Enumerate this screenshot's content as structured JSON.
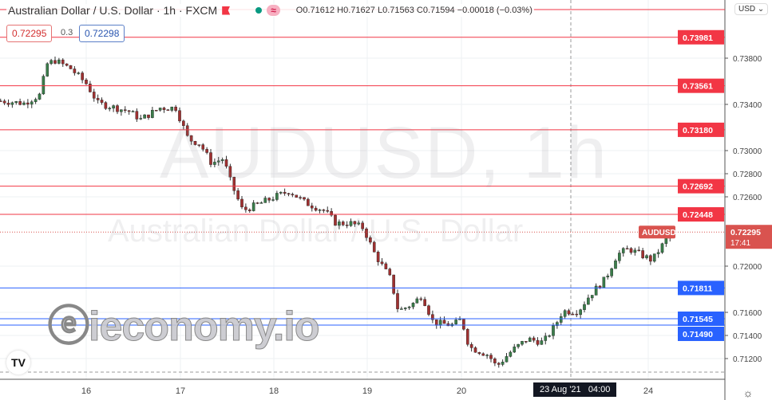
{
  "header": {
    "title": "Australian Dollar / U.S. Dollar · 1h · FXCM",
    "open": "O0.71612",
    "high": "H0.71627",
    "low": "L0.71563",
    "close": "C0.71594",
    "change": "−0.00018 (−0.03%)"
  },
  "trade": {
    "sell": "0.72295",
    "spread": "0.3",
    "buy": "0.72298"
  },
  "currency": "USD ⌄",
  "watermark": {
    "symbol": "AUDUSD, 1h",
    "name": "Australian Dollar / U.S. Dollar",
    "brand": "ieconomy.io",
    "tv_logo": "TV"
  },
  "crosshair_label": "23 Aug '21   04:00",
  "colors": {
    "up": "#26a69a",
    "down": "#ef5350",
    "resistance": "#f23645",
    "support": "#2962ff",
    "candle_body_up": "#3a7d4a",
    "candle_body_down": "#a03030"
  },
  "chart_data": {
    "type": "candlestick",
    "symbol": "AUDUSD",
    "timeframe": "1h",
    "price_ticks": [
      "0.73800",
      "0.73400",
      "0.73000",
      "0.72800",
      "0.72600",
      "0.72000",
      "0.71600",
      "0.71400",
      "0.71200"
    ],
    "time_ticks": [
      {
        "label": "16",
        "day": 16
      },
      {
        "label": "17",
        "day": 17
      },
      {
        "label": "18",
        "day": 18
      },
      {
        "label": "19",
        "day": 19
      },
      {
        "label": "20",
        "day": 20
      },
      {
        "label": "24",
        "day": 24
      }
    ],
    "resistance_levels": [
      "0.73981",
      "0.73561",
      "0.73180",
      "0.72692",
      "0.72448"
    ],
    "support_levels": [
      "0.71811",
      "0.71545",
      "0.71490"
    ],
    "last_price": {
      "label": "AUDUSD",
      "price": "0.72295",
      "countdown": "17:41"
    },
    "closes": [
      [
        "15 02",
        0.7343
      ],
      [
        "15 08",
        0.7341
      ],
      [
        "15 12",
        0.7348
      ],
      [
        "15 14",
        0.7375
      ],
      [
        "15 16",
        0.7378
      ],
      [
        "15 20",
        0.7371
      ],
      [
        "16 00",
        0.7358
      ],
      [
        "16 03",
        0.7341
      ],
      [
        "16 11",
        0.7334
      ],
      [
        "16 14",
        0.7327
      ],
      [
        "16 19",
        0.7337
      ],
      [
        "16 23",
        0.7337
      ],
      [
        "17 02",
        0.731
      ],
      [
        "17 05",
        0.7306
      ],
      [
        "17 08",
        0.7289
      ],
      [
        "17 11",
        0.7293
      ],
      [
        "17 13",
        0.7272
      ],
      [
        "17 16",
        0.7248
      ],
      [
        "17 21",
        0.7255
      ],
      [
        "18 01",
        0.7261
      ],
      [
        "18 04",
        0.7265
      ],
      [
        "18 08",
        0.7255
      ],
      [
        "18 13",
        0.7248
      ],
      [
        "18 16",
        0.7237
      ],
      [
        "18 20",
        0.7237
      ],
      [
        "18 23",
        0.7233
      ],
      [
        "19 02",
        0.721
      ],
      [
        "19 06",
        0.7189
      ],
      [
        "19 08",
        0.7161
      ],
      [
        "19 12",
        0.7168
      ],
      [
        "19 14",
        0.7175
      ],
      [
        "19 17",
        0.7151
      ],
      [
        "19 22",
        0.7149
      ],
      [
        "20 00",
        0.7154
      ],
      [
        "20 02",
        0.713
      ],
      [
        "20 07",
        0.7123
      ],
      [
        "20 09",
        0.7113
      ],
      [
        "20 13",
        0.7127
      ],
      [
        "20 17",
        0.7137
      ],
      [
        "20 21",
        0.7134
      ],
      [
        "23 00",
        0.7148
      ],
      [
        "23 02",
        0.7161
      ],
      [
        "23 06",
        0.7161
      ],
      [
        "23 09",
        0.7175
      ],
      [
        "23 13",
        0.7189
      ],
      [
        "23 16",
        0.721
      ],
      [
        "23 19",
        0.7215
      ],
      [
        "23 22",
        0.721
      ],
      [
        "24 01",
        0.7205
      ],
      [
        "24 04",
        0.722
      ],
      [
        "24 06",
        0.723
      ],
      [
        "24 07",
        0.72295
      ]
    ]
  }
}
